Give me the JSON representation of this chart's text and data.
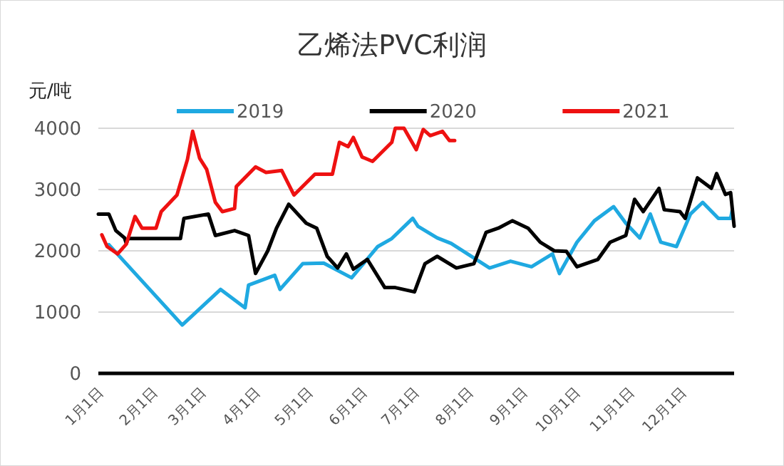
{
  "chart_data": {
    "type": "line",
    "title": "乙烯法PVC利润",
    "ylabel": "元/吨",
    "ylim": [
      0,
      4000
    ],
    "yticks": [
      0,
      1000,
      2000,
      3000,
      4000
    ],
    "xlim": [
      "--01-01",
      "--12-31"
    ],
    "xticks": [
      {
        "value": "--01-01",
        "label": "1月1日"
      },
      {
        "value": "--02-01",
        "label": "2月1日"
      },
      {
        "value": "--03-01",
        "label": "3月1日"
      },
      {
        "value": "--04-01",
        "label": "4月1日"
      },
      {
        "value": "--05-01",
        "label": "5月1日"
      },
      {
        "value": "--06-01",
        "label": "6月1日"
      },
      {
        "value": "--07-01",
        "label": "7月1日"
      },
      {
        "value": "--08-01",
        "label": "8月1日"
      },
      {
        "value": "--09-01",
        "label": "9月1日"
      },
      {
        "value": "--10-01",
        "label": "10月1日"
      },
      {
        "value": "--11-01",
        "label": "11月1日"
      },
      {
        "value": "--12-01",
        "label": "12月1日"
      }
    ],
    "grid": "y",
    "legend": "top",
    "marker": "none",
    "line_style": "solid",
    "series": [
      {
        "name": "2019",
        "color": "#1fa9e1",
        "x": [
          "--01-07",
          "--02-18",
          "--03-12",
          "--03-26",
          "--03-28",
          "--04-12",
          "--04-15",
          "--04-28",
          "--05-10",
          "--05-26",
          "--06-10",
          "--06-18",
          "--06-30",
          "--07-03",
          "--07-14",
          "--07-22",
          "--08-13",
          "--08-25",
          "--09-06",
          "--09-18",
          "--09-22",
          "--10-02",
          "--10-12",
          "--10-23",
          "--10-30",
          "--11-07",
          "--11-13",
          "--11-19",
          "--11-28",
          "--12-06",
          "--12-13",
          "--12-22",
          "--12-29",
          "--12-30"
        ],
        "values": [
          2100,
          790,
          1370,
          1070,
          1440,
          1600,
          1370,
          1790,
          1800,
          1560,
          2070,
          2200,
          2530,
          2400,
          2210,
          2120,
          1720,
          1830,
          1740,
          1950,
          1630,
          2140,
          2490,
          2720,
          2450,
          2210,
          2600,
          2140,
          2070,
          2600,
          2790,
          2530,
          2530,
          2670
        ]
      },
      {
        "name": "2020",
        "color": "#000000",
        "x": [
          "--01-01",
          "--01-07",
          "--01-11",
          "--01-16",
          "--01-17",
          "--01-18",
          "--02-17",
          "--02-19",
          "--03-05",
          "--03-09",
          "--03-20",
          "--03-28",
          "--04-01",
          "--04-08",
          "--04-13",
          "--04-20",
          "--04-30",
          "--05-06",
          "--05-12",
          "--05-18",
          "--05-23",
          "--05-27",
          "--06-04",
          "--06-14",
          "--06-20",
          "--07-01",
          "--07-07",
          "--07-14",
          "--07-25",
          "--08-04",
          "--08-11",
          "--08-18",
          "--08-26",
          "--09-04",
          "--09-11",
          "--09-19",
          "--09-26",
          "--10-02",
          "--10-14",
          "--10-21",
          "--10-30",
          "--11-04",
          "--11-09",
          "--11-18",
          "--11-21",
          "--11-30",
          "--12-03",
          "--12-10",
          "--12-18",
          "--12-21",
          "--12-26",
          "--12-29",
          "--12-31"
        ],
        "values": [
          2600,
          2600,
          2330,
          2210,
          2120,
          2200,
          2200,
          2530,
          2600,
          2250,
          2330,
          2250,
          1630,
          2000,
          2370,
          2760,
          2450,
          2370,
          1910,
          1720,
          1950,
          1700,
          1860,
          1400,
          1400,
          1330,
          1790,
          1910,
          1720,
          1790,
          2300,
          2370,
          2490,
          2370,
          2140,
          2000,
          1990,
          1740,
          1860,
          2140,
          2250,
          2840,
          2640,
          3020,
          2670,
          2640,
          2530,
          3190,
          3020,
          3260,
          2920,
          2950,
          2400
        ]
      },
      {
        "name": "2021",
        "color": "#ee1111",
        "x": [
          "--01-03",
          "--01-06",
          "--01-12",
          "--01-17",
          "--01-22",
          "--01-26",
          "--02-03",
          "--02-06",
          "--02-15",
          "--02-21",
          "--02-24",
          "--02-28",
          "--03-04",
          "--03-09",
          "--03-13",
          "--03-20",
          "--03-21",
          "--04-01",
          "--04-07",
          "--04-16",
          "--04-23",
          "--05-05",
          "--05-15",
          "--05-19",
          "--05-24",
          "--05-27",
          "--06-01",
          "--06-07",
          "--06-18",
          "--06-20",
          "--06-25",
          "--07-02",
          "--07-06",
          "--07-10",
          "--07-17",
          "--07-21",
          "--07-24"
        ],
        "values": [
          2260,
          2070,
          1950,
          2110,
          2560,
          2370,
          2370,
          2640,
          2910,
          3490,
          3950,
          3510,
          3330,
          2790,
          2640,
          2690,
          3050,
          3370,
          3280,
          3310,
          2910,
          3250,
          3250,
          3770,
          3700,
          3850,
          3530,
          3460,
          3770,
          4000,
          4000,
          3650,
          3980,
          3880,
          3950,
          3800,
          3800
        ]
      }
    ]
  }
}
